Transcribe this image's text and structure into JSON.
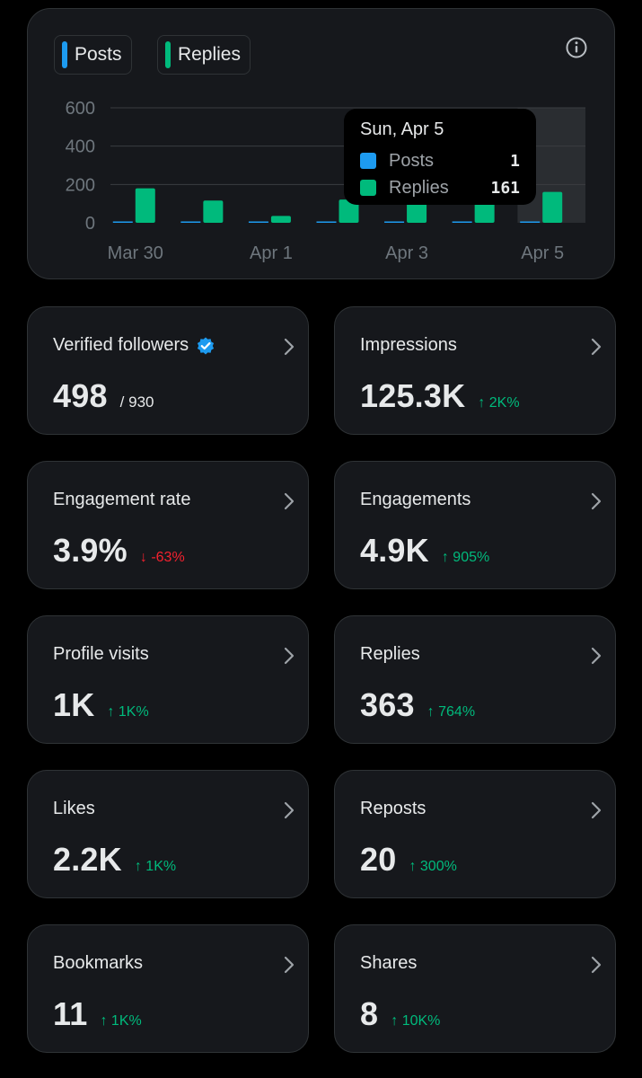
{
  "colors": {
    "posts": "#1d9bf0",
    "replies": "#00ba7c",
    "verified": "#1d9bf0",
    "up": "#00ba7c",
    "down": "#f4212e"
  },
  "chart": {
    "legend": [
      {
        "label": "Posts"
      },
      {
        "label": "Replies"
      }
    ],
    "info_icon": "info-icon",
    "tooltip": {
      "title": "Sun, Apr 5",
      "rows": [
        {
          "label": "Posts",
          "value": "1"
        },
        {
          "label": "Replies",
          "value": "161"
        }
      ]
    }
  },
  "chart_data": {
    "type": "bar",
    "categories": [
      "Mar 30",
      "Mar 31",
      "Apr 1",
      "Apr 2",
      "Apr 3",
      "Apr 4",
      "Apr 5"
    ],
    "x_tick_labels": [
      "Mar 30",
      "Apr 1",
      "Apr 3",
      "Apr 5"
    ],
    "series": [
      {
        "name": "Posts",
        "values": [
          2,
          2,
          0,
          2,
          2,
          2,
          1
        ]
      },
      {
        "name": "Replies",
        "values": [
          180,
          116,
          36,
          121,
          117,
          111,
          161
        ]
      }
    ],
    "y_ticks": [
      0,
      200,
      400,
      600
    ],
    "ylim": [
      0,
      600
    ],
    "highlighted_category": "Apr 5",
    "grid": true
  },
  "stats": [
    {
      "label": "Verified followers",
      "value": "498",
      "sub": "/ 930",
      "verified": true
    },
    {
      "label": "Impressions",
      "value": "125.3K",
      "change": "2K%",
      "direction": "up"
    },
    {
      "label": "Engagement rate",
      "value": "3.9%",
      "change": "-63%",
      "direction": "down"
    },
    {
      "label": "Engagements",
      "value": "4.9K",
      "change": "905%",
      "direction": "up"
    },
    {
      "label": "Profile visits",
      "value": "1K",
      "change": "1K%",
      "direction": "up"
    },
    {
      "label": "Replies",
      "value": "363",
      "change": "764%",
      "direction": "up"
    },
    {
      "label": "Likes",
      "value": "2.2K",
      "change": "1K%",
      "direction": "up"
    },
    {
      "label": "Reposts",
      "value": "20",
      "change": "300%",
      "direction": "up"
    },
    {
      "label": "Bookmarks",
      "value": "11",
      "change": "1K%",
      "direction": "up"
    },
    {
      "label": "Shares",
      "value": "8",
      "change": "10K%",
      "direction": "up"
    }
  ]
}
